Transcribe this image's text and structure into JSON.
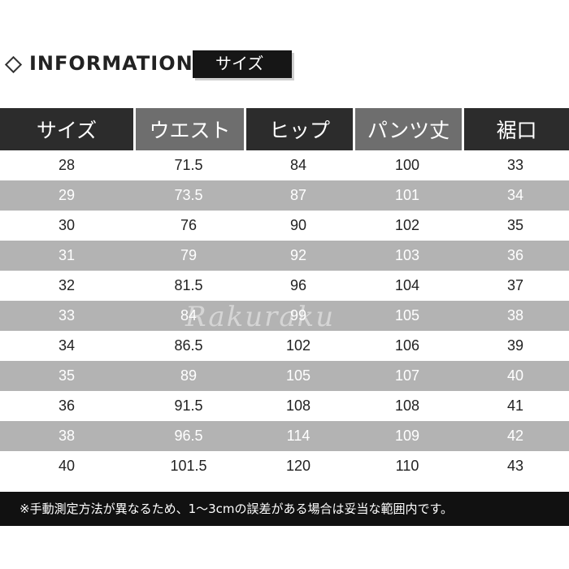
{
  "header": {
    "title": "INFORMATION",
    "tag": "サイズ"
  },
  "table": {
    "columns": [
      "サイズ",
      "ウエスト",
      "ヒップ",
      "パンツ丈",
      "裾口"
    ],
    "rows": [
      [
        "28",
        "71.5",
        "84",
        "100",
        "33"
      ],
      [
        "29",
        "73.5",
        "87",
        "101",
        "34"
      ],
      [
        "30",
        "76",
        "90",
        "102",
        "35"
      ],
      [
        "31",
        "79",
        "92",
        "103",
        "36"
      ],
      [
        "32",
        "81.5",
        "96",
        "104",
        "37"
      ],
      [
        "33",
        "84",
        "99",
        "105",
        "38"
      ],
      [
        "34",
        "86.5",
        "102",
        "106",
        "39"
      ],
      [
        "35",
        "89",
        "105",
        "107",
        "40"
      ],
      [
        "36",
        "91.5",
        "108",
        "108",
        "41"
      ],
      [
        "38",
        "96.5",
        "114",
        "109",
        "42"
      ],
      [
        "40",
        "101.5",
        "120",
        "110",
        "43"
      ]
    ]
  },
  "note": "※手動測定方法が異なるため、1〜3cmの誤差がある場合は妥当な範囲内です。",
  "watermark": "Rakuraku",
  "colors": {
    "header_dark": "#2c2c2c",
    "header_grey": "#6e6e6e",
    "row_grey": "#b3b3b3",
    "note_bg": "#111111"
  }
}
